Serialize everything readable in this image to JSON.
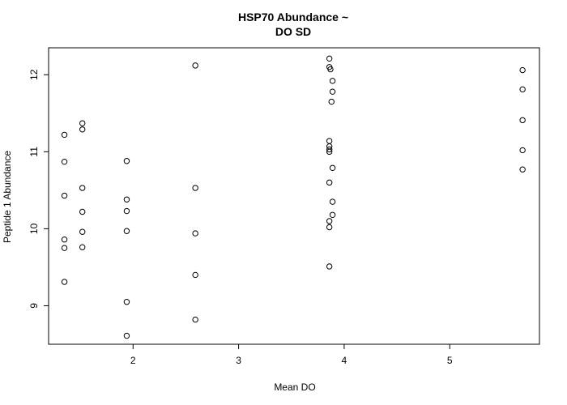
{
  "chart_data": {
    "type": "scatter",
    "title_lines": [
      "HSP70 Abundance ~",
      "DO SD"
    ],
    "xlabel": "Mean DO",
    "ylabel": "Peptide 1 Abundance",
    "xlim": [
      1.2,
      5.85
    ],
    "ylim": [
      8.5,
      12.35
    ],
    "xticks": [
      2,
      3,
      4,
      5
    ],
    "yticks": [
      9,
      10,
      11,
      12
    ],
    "grid": false,
    "points": [
      {
        "x": 1.35,
        "y": 11.22
      },
      {
        "x": 1.35,
        "y": 10.87
      },
      {
        "x": 1.35,
        "y": 10.43
      },
      {
        "x": 1.35,
        "y": 9.86
      },
      {
        "x": 1.35,
        "y": 9.75
      },
      {
        "x": 1.35,
        "y": 9.31
      },
      {
        "x": 1.52,
        "y": 11.37
      },
      {
        "x": 1.52,
        "y": 11.29
      },
      {
        "x": 1.52,
        "y": 10.53
      },
      {
        "x": 1.52,
        "y": 10.22
      },
      {
        "x": 1.52,
        "y": 9.96
      },
      {
        "x": 1.52,
        "y": 9.76
      },
      {
        "x": 1.94,
        "y": 10.88
      },
      {
        "x": 1.94,
        "y": 10.38
      },
      {
        "x": 1.94,
        "y": 10.23
      },
      {
        "x": 1.94,
        "y": 9.97
      },
      {
        "x": 1.94,
        "y": 9.05
      },
      {
        "x": 1.94,
        "y": 8.61
      },
      {
        "x": 2.59,
        "y": 12.12
      },
      {
        "x": 2.59,
        "y": 10.53
      },
      {
        "x": 2.59,
        "y": 9.94
      },
      {
        "x": 2.59,
        "y": 9.4
      },
      {
        "x": 2.59,
        "y": 8.82
      },
      {
        "x": 3.86,
        "y": 12.21
      },
      {
        "x": 3.86,
        "y": 12.1
      },
      {
        "x": 3.87,
        "y": 12.07
      },
      {
        "x": 3.89,
        "y": 11.92
      },
      {
        "x": 3.89,
        "y": 11.78
      },
      {
        "x": 3.88,
        "y": 11.65
      },
      {
        "x": 3.86,
        "y": 11.14
      },
      {
        "x": 3.86,
        "y": 11.07
      },
      {
        "x": 3.86,
        "y": 11.0
      },
      {
        "x": 3.86,
        "y": 11.03
      },
      {
        "x": 3.89,
        "y": 10.79
      },
      {
        "x": 3.86,
        "y": 10.6
      },
      {
        "x": 3.89,
        "y": 10.35
      },
      {
        "x": 3.89,
        "y": 10.18
      },
      {
        "x": 3.86,
        "y": 10.1
      },
      {
        "x": 3.86,
        "y": 10.02
      },
      {
        "x": 3.86,
        "y": 9.51
      },
      {
        "x": 5.69,
        "y": 12.06
      },
      {
        "x": 5.69,
        "y": 11.81
      },
      {
        "x": 5.69,
        "y": 11.41
      },
      {
        "x": 5.69,
        "y": 11.02
      },
      {
        "x": 5.69,
        "y": 10.77
      }
    ]
  }
}
